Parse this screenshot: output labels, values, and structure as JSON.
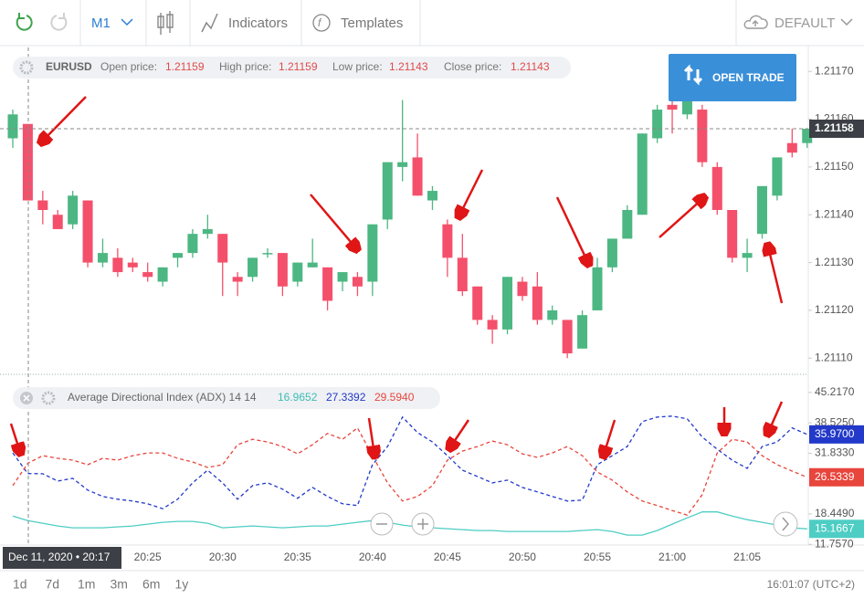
{
  "toolbar": {
    "timeframe": "M1",
    "indicators": "Indicators",
    "templates": "Templates",
    "layout": "DEFAULT"
  },
  "info": {
    "symbol": "EURUSD",
    "open": "Open price:",
    "high": "High price:",
    "low": "Low price:",
    "close": "Close price:"
  },
  "open_trade": "OPEN TRADE",
  "crosshair_label": "Dec 11, 2020 • 20:17",
  "periods": [
    "1d",
    "7d",
    "1m",
    "3m",
    "6m",
    "1y"
  ],
  "clock": "16:01:07 (UTC+2)",
  "chart_data": [
    {
      "type": "candlestick",
      "up_color": "#4cb782",
      "down_color": "#f4506b",
      "x": [
        null,
        null,
        null,
        null,
        null,
        null,
        null,
        null,
        null,
        "20:25",
        null,
        null,
        null,
        null,
        "20:30",
        null,
        null,
        null,
        null,
        "20:35",
        null,
        null,
        null,
        null,
        "20:40",
        null,
        null,
        null,
        null,
        "20:45",
        null,
        null,
        null,
        null,
        "20:50",
        null,
        null,
        null,
        null,
        "20:55",
        null,
        null,
        null,
        null,
        "21:00",
        null,
        null,
        null,
        null,
        "21:05",
        null,
        null,
        null,
        null
      ],
      "open": [
        1.21156,
        1.21159,
        1.21143,
        1.2114,
        1.21138,
        1.21143,
        1.2113,
        1.21131,
        1.2113,
        1.21128,
        1.21126,
        1.21131,
        1.21132,
        1.21136,
        1.21136,
        1.21127,
        1.21127,
        1.21132,
        1.21132,
        1.21126,
        1.21129,
        1.21129,
        1.21126,
        1.21127,
        1.21126,
        1.21139,
        1.2115,
        1.21152,
        1.21143,
        1.21138,
        1.21131,
        1.21125,
        1.21118,
        1.21116,
        1.21126,
        1.21125,
        1.21118,
        1.21118,
        1.21112,
        1.2112,
        1.21129,
        1.21135,
        1.2114,
        1.21156,
        1.21163,
        1.21161,
        1.21162,
        1.2115,
        1.21141,
        1.21131,
        1.21136,
        1.21144,
        1.21155,
        1.21155
      ],
      "high": [
        1.21162,
        1.21159,
        1.21145,
        1.21141,
        1.21145,
        1.21143,
        1.21135,
        1.21133,
        1.21131,
        1.2113,
        1.21129,
        1.21132,
        1.21137,
        1.2114,
        1.21136,
        1.21128,
        1.21131,
        1.21133,
        1.21132,
        1.2113,
        1.21135,
        1.21129,
        1.21128,
        1.21128,
        1.21138,
        1.21151,
        1.21164,
        1.21157,
        1.21146,
        1.21139,
        1.21136,
        1.21125,
        1.21119,
        1.21127,
        1.21127,
        1.21128,
        1.21121,
        1.21118,
        1.2112,
        1.21131,
        1.21135,
        1.21142,
        1.21157,
        1.21163,
        1.21164,
        1.21164,
        1.21163,
        1.21151,
        1.21141,
        1.21135,
        1.21146,
        1.21152,
        1.21158,
        1.21158
      ],
      "low": [
        1.21154,
        1.21143,
        1.21138,
        1.21137,
        1.21137,
        1.21129,
        1.21129,
        1.21127,
        1.21128,
        1.21126,
        1.21125,
        1.21129,
        1.21131,
        1.21135,
        1.21123,
        1.21123,
        1.21126,
        1.21131,
        1.21123,
        1.21125,
        1.21129,
        1.2112,
        1.21124,
        1.21123,
        1.21123,
        1.21137,
        1.21147,
        1.21144,
        1.21141,
        1.21127,
        1.21123,
        1.21117,
        1.21113,
        1.21115,
        1.21122,
        1.21117,
        1.21117,
        1.2111,
        1.21112,
        1.2112,
        1.21128,
        1.21135,
        1.2114,
        1.21155,
        1.21157,
        1.2116,
        1.2115,
        1.2114,
        1.2113,
        1.21128,
        1.21135,
        1.21143,
        1.21152,
        1.21154
      ],
      "close": [
        1.21161,
        1.21143,
        1.21141,
        1.21137,
        1.21144,
        1.2113,
        1.21132,
        1.21128,
        1.21129,
        1.21127,
        1.21129,
        1.21132,
        1.21136,
        1.21137,
        1.2113,
        1.21126,
        1.21131,
        1.21132,
        1.21125,
        1.2113,
        1.2113,
        1.21122,
        1.21128,
        1.21125,
        1.21138,
        1.21151,
        1.21151,
        1.21144,
        1.21145,
        1.21131,
        1.21124,
        1.21118,
        1.21116,
        1.21127,
        1.21123,
        1.21118,
        1.2112,
        1.21111,
        1.21119,
        1.21129,
        1.21135,
        1.21141,
        1.21157,
        1.21162,
        1.21162,
        1.21164,
        1.21151,
        1.21141,
        1.21131,
        1.21132,
        1.21146,
        1.21152,
        1.21153,
        1.21158
      ],
      "ylim": [
        1.21107,
        1.21175
      ],
      "yticks": [
        {
          "value": 1.2117,
          "label": "1.21170"
        },
        {
          "value": 1.2116,
          "label": "1.21160"
        },
        {
          "value": 1.2115,
          "label": "1.21150"
        },
        {
          "value": 1.2114,
          "label": "1.21140"
        },
        {
          "value": 1.2113,
          "label": "1.21130"
        },
        {
          "value": 1.2112,
          "label": "1.21120"
        },
        {
          "value": 1.2111,
          "label": "1.21110"
        }
      ]
    },
    {
      "type": "line",
      "title": "Average Directional Index (ADX) 14 14",
      "ylim": [
        11.6,
        47.2
      ],
      "yticks": [
        {
          "value": 45.217,
          "label": "45.2170"
        },
        {
          "value": 38.525,
          "label": "38.5250"
        },
        {
          "value": 31.833,
          "label": "31.8330"
        },
        {
          "value": 18.449,
          "label": "18.4490"
        },
        {
          "value": 11.757,
          "label": "11.7570"
        }
      ],
      "series": [
        {
          "color": "#4ecdc4",
          "dashed": false,
          "values": [
            18.0,
            16.9652,
            16.4,
            15.8,
            15.4,
            15.4,
            15.4,
            15.6,
            15.8,
            16.2,
            16.6,
            16.8,
            16.8,
            16.4,
            15.4,
            15.6,
            15.8,
            15.6,
            15.4,
            15.6,
            15.8,
            15.8,
            16.2,
            16.6,
            17.0,
            16.6,
            16.0,
            15.6,
            15.4,
            15.2,
            15.0,
            14.8,
            14.8,
            14.6,
            14.6,
            14.6,
            14.6,
            14.6,
            14.8,
            15.0,
            14.6,
            13.8,
            13.8,
            14.8,
            16.2,
            17.6,
            18.9,
            18.9,
            18.0,
            17.2,
            16.6,
            16.0,
            15.4,
            15.1667
          ]
        },
        {
          "color": "#2239c9",
          "dashed": true,
          "values": [
            31.9,
            27.3392,
            27.3,
            25.7,
            26.3,
            23.7,
            22.3,
            21.7,
            21.3,
            20.7,
            19.6,
            21.7,
            25.3,
            28.1,
            25.3,
            21.7,
            24.7,
            25.3,
            23.9,
            21.9,
            24.3,
            22.3,
            20.7,
            20.3,
            29.3,
            33.3,
            39.8,
            36.4,
            34.3,
            31.3,
            28.1,
            26.7,
            25.3,
            25.9,
            24.3,
            23.3,
            22.3,
            21.3,
            21.5,
            29.3,
            31.3,
            33.3,
            38.8,
            39.8,
            40.0,
            39.4,
            35.4,
            32.7,
            30.3,
            28.5,
            33.3,
            34.3,
            37.4,
            35.97
          ],
          "value_labels": [
            null,
            null,
            null,
            null,
            null,
            null,
            null,
            null,
            null,
            null,
            null,
            null,
            null,
            null,
            null,
            null,
            null,
            null,
            null,
            null,
            null,
            null,
            null,
            null,
            null,
            null,
            null,
            null,
            null,
            null,
            null,
            null,
            null,
            null,
            null,
            null,
            null,
            null,
            null,
            null,
            null,
            null,
            null,
            null,
            null,
            null,
            null,
            null,
            null,
            null,
            null,
            null,
            null,
            "35.9700"
          ]
        },
        {
          "color": "#e8453c",
          "dashed": true,
          "values": [
            24.7,
            29.594,
            31.3,
            30.7,
            30.3,
            29.3,
            30.7,
            30.3,
            31.3,
            31.9,
            31.9,
            30.7,
            29.9,
            28.7,
            29.3,
            33.7,
            34.9,
            34.3,
            33.3,
            31.7,
            33.7,
            36.2,
            34.9,
            37.4,
            31.3,
            25.3,
            21.3,
            22.3,
            24.7,
            30.3,
            32.3,
            33.3,
            34.5,
            33.7,
            31.7,
            30.9,
            31.9,
            33.3,
            31.3,
            27.7,
            25.9,
            23.3,
            21.3,
            20.3,
            19.2,
            18.2,
            22.7,
            31.9,
            34.9,
            34.3,
            31.3,
            29.3,
            27.9,
            26.5339
          ],
          "value_labels": [
            null,
            "29.5940",
            null,
            null,
            null,
            null,
            null,
            null,
            null,
            null,
            null,
            null,
            null,
            null,
            null,
            null,
            null,
            null,
            null,
            null,
            null,
            null,
            null,
            null,
            null,
            null,
            null,
            null,
            null,
            null,
            null,
            null,
            null,
            null,
            null,
            null,
            null,
            null,
            null,
            null,
            null,
            null,
            null,
            null,
            null,
            null,
            null,
            null,
            null,
            null,
            null,
            null,
            null,
            null
          ]
        }
      ]
    }
  ]
}
